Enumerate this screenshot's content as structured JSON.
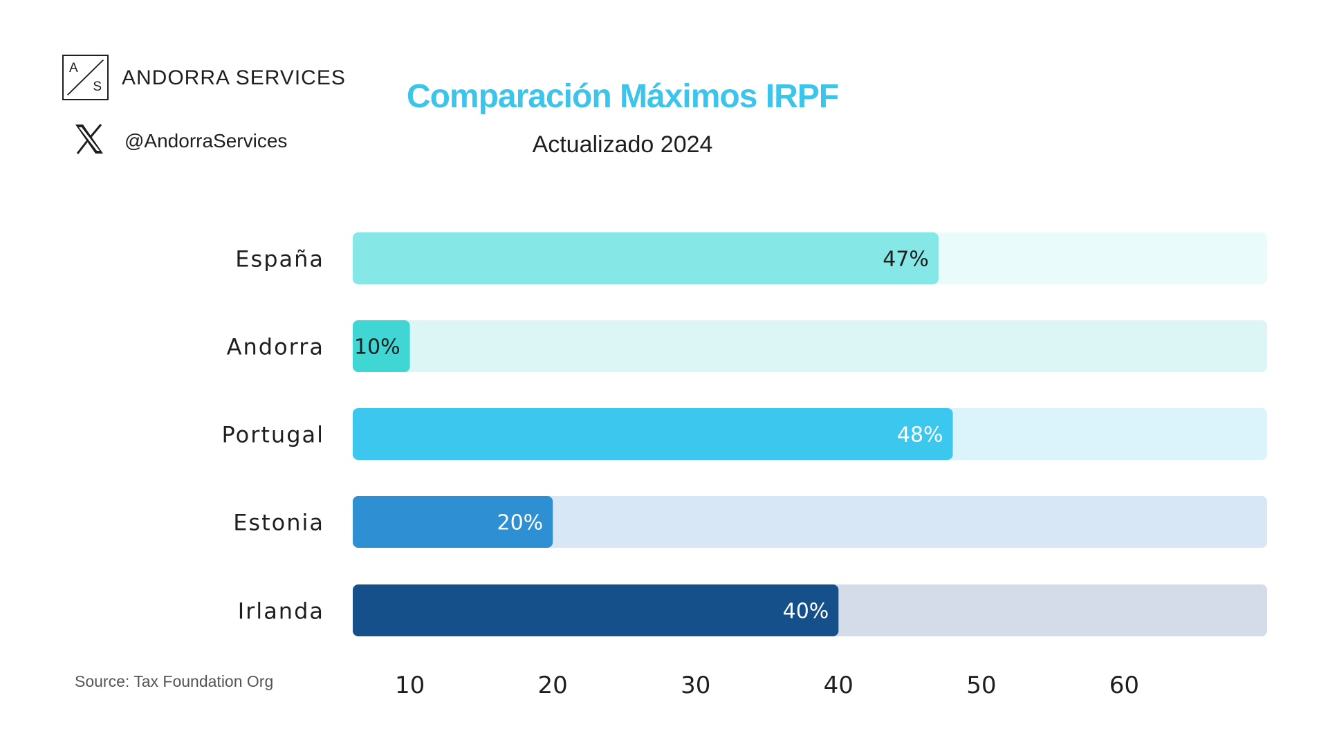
{
  "brand": {
    "logo_letter_a": "A",
    "logo_letter_s": "S",
    "name": "ANDORRA SERVICES",
    "handle": "@AndorraServices",
    "x_icon": "x-logo-icon"
  },
  "source": "Source: Tax Foundation Org",
  "colors": {
    "title": "#3cc4eb",
    "text": "#1e1e1e"
  },
  "chart_data": {
    "type": "bar",
    "orientation": "horizontal",
    "title": "Comparación Máximos IRPF",
    "subtitle": "Actualizado 2024",
    "categories": [
      "España",
      "Andorra",
      "Portugal",
      "Estonia",
      "Irlanda"
    ],
    "values": [
      47,
      10,
      48,
      20,
      40
    ],
    "value_labels": [
      "47%",
      "10%",
      "48%",
      "20%",
      "40%"
    ],
    "xlim": [
      6,
      70
    ],
    "xticks": [
      10,
      20,
      30,
      40,
      50,
      60
    ],
    "bar_colors": [
      "#86e8e6",
      "#3fd6d3",
      "#3cc8ee",
      "#2e8fd3",
      "#15508a"
    ],
    "track_colors": [
      "#e9fbfa",
      "#dbf6f5",
      "#dbf3fb",
      "#d8e7f5",
      "#d3dce8"
    ],
    "label_colors": [
      "#1e1e1e",
      "#1e1e1e",
      "#ffffff",
      "#ffffff",
      "#ffffff"
    ]
  }
}
